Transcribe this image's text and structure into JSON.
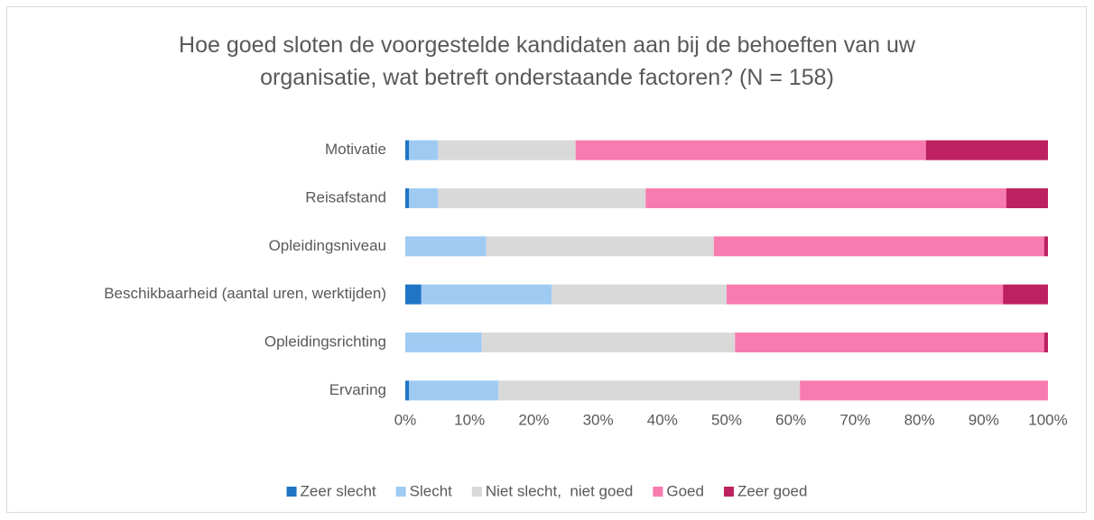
{
  "chart_data": {
    "type": "stacked-barh",
    "title": "Hoe goed sloten de voorgestelde kandidaten aan bij de behoeften van uw organisatie, wat betreft onderstaande factoren? (N = 158)",
    "categories": [
      "Motivatie",
      "Reisafstand",
      "Opleidingsniveau",
      "Beschikbaarheid (aantal uren, werktijden)",
      "Opleidingsrichting",
      "Ervaring"
    ],
    "series": [
      {
        "name": "Zeer slecht",
        "color": "#2175c4",
        "values": [
          0.6,
          0.6,
          0,
          2.5,
          0,
          0.6
        ]
      },
      {
        "name": "Slecht",
        "color": "#9fcbf3",
        "values": [
          4.5,
          4.5,
          12.6,
          20.3,
          11.9,
          13.9
        ]
      },
      {
        "name": "Niet slecht,  niet goed",
        "color": "#d9d9d9",
        "values": [
          21.4,
          32.3,
          35.4,
          27.2,
          39.4,
          46.9
        ]
      },
      {
        "name": "Goed",
        "color": "#f87bb0",
        "values": [
          54.5,
          56.1,
          51.4,
          43.0,
          48.1,
          38.6
        ]
      },
      {
        "name": "Zeer goed",
        "color": "#be2160",
        "values": [
          19.0,
          6.5,
          0.6,
          7.0,
          0.6,
          0
        ]
      }
    ],
    "xlim": [
      0,
      100
    ],
    "xticks": [
      {
        "value": 0,
        "label": "0%"
      },
      {
        "value": 10,
        "label": "10%"
      },
      {
        "value": 20,
        "label": "20%"
      },
      {
        "value": 30,
        "label": "30%"
      },
      {
        "value": 40,
        "label": "40%"
      },
      {
        "value": 50,
        "label": "50%"
      },
      {
        "value": 60,
        "label": "60%"
      },
      {
        "value": 70,
        "label": "70%"
      },
      {
        "value": 80,
        "label": "80%"
      },
      {
        "value": 90,
        "label": "90%"
      },
      {
        "value": 100,
        "label": "100%"
      }
    ],
    "grid": false,
    "legend": "bottom"
  }
}
